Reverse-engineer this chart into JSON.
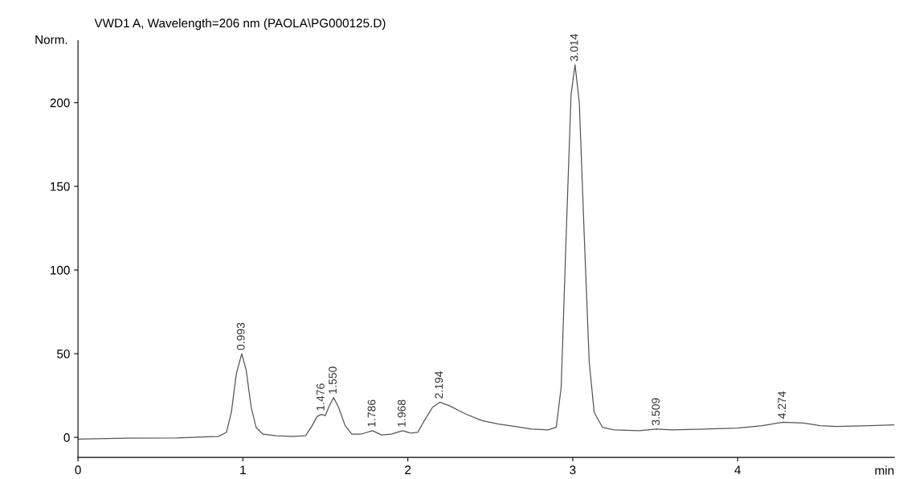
{
  "chart_data": {
    "type": "line",
    "title": "VWD1 A, Wavelength=206 nm (PAOLA\\PG000125.D)",
    "xlabel": "min",
    "ylabel": "Norm.",
    "xlim": [
      0,
      4.95
    ],
    "xticks": [
      0,
      1,
      2,
      3,
      4
    ],
    "ylim": [
      -12,
      237
    ],
    "yticks": [
      0,
      50,
      100,
      150,
      200
    ],
    "grid": false,
    "legend": false,
    "marker": "none",
    "line_style": "solid",
    "series": [
      {
        "color": "#555555",
        "x": [
          0,
          0.3,
          0.6,
          0.85,
          0.9,
          0.93,
          0.96,
          0.993,
          1.02,
          1.05,
          1.08,
          1.12,
          1.2,
          1.3,
          1.38,
          1.42,
          1.45,
          1.476,
          1.5,
          1.52,
          1.55,
          1.58,
          1.62,
          1.66,
          1.72,
          1.786,
          1.84,
          1.9,
          1.968,
          2.02,
          2.06,
          2.1,
          2.15,
          2.194,
          2.25,
          2.35,
          2.45,
          2.55,
          2.65,
          2.75,
          2.85,
          2.9,
          2.93,
          2.96,
          2.99,
          3.014,
          3.04,
          3.07,
          3.1,
          3.13,
          3.18,
          3.25,
          3.4,
          3.509,
          3.6,
          3.8,
          4.0,
          4.15,
          4.274,
          4.4,
          4.5,
          4.6,
          4.8,
          4.95
        ],
        "values": [
          -1,
          -0.5,
          -0.3,
          0.5,
          3,
          15,
          38,
          50,
          40,
          18,
          6,
          2,
          1,
          0.5,
          1,
          7,
          12.5,
          13.7,
          13,
          18,
          23.8,
          18,
          7,
          2,
          2,
          4,
          1.5,
          2,
          4,
          2.5,
          3,
          10,
          18,
          21,
          19,
          14,
          10,
          8,
          6.5,
          5,
          4.5,
          6,
          30,
          120,
          205,
          222.6,
          200,
          120,
          45,
          15,
          6,
          4.5,
          4,
          5,
          4.5,
          5,
          5.5,
          7,
          9,
          8.5,
          7,
          6.5,
          7,
          7.5
        ]
      }
    ],
    "annotations": [
      {
        "text": "0.993",
        "x": 0.993,
        "y": 50
      },
      {
        "text": "1.476",
        "x": 1.476,
        "y": 13.7
      },
      {
        "text": "1.550",
        "x": 1.55,
        "y": 23.8
      },
      {
        "text": "1.786",
        "x": 1.786,
        "y": 4
      },
      {
        "text": "1.968",
        "x": 1.968,
        "y": 4
      },
      {
        "text": "2.194",
        "x": 2.194,
        "y": 21
      },
      {
        "text": "3.014",
        "x": 3.014,
        "y": 222.6
      },
      {
        "text": "3.509",
        "x": 3.509,
        "y": 5
      },
      {
        "text": "4.274",
        "x": 4.274,
        "y": 9
      }
    ]
  }
}
